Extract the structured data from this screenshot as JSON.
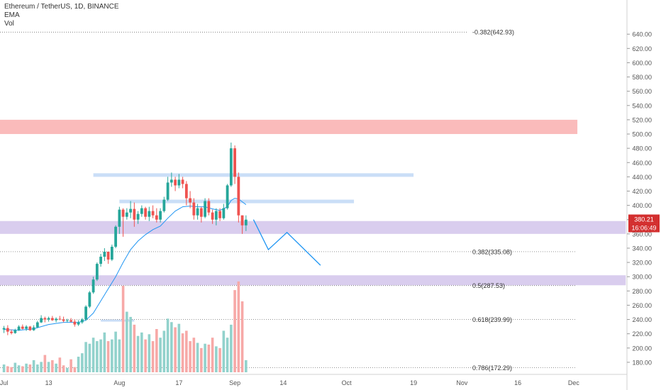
{
  "legend": {
    "symbol": "Ethereum / TetherUS, 1D, BINANCE",
    "ema": "EMA",
    "vol": "Vol"
  },
  "colors": {
    "up": "#26a69a",
    "down": "#ef5350",
    "vol_up": "#92d2cc",
    "vol_down": "#f7a9a7",
    "ema": "#2196f3",
    "projection": "#2196f3",
    "resistance_zone": "#f9b4b4",
    "support_zone": "#d5c8ec",
    "blue_zone": "#c7dcf7",
    "price_tag": "#d32f2f",
    "axis_text": "#555555",
    "grid": "#e6e6e6"
  },
  "chart_data": {
    "type": "candlestick",
    "title": "Ethereum / TetherUS, 1D, BINANCE",
    "ylim": [
      166,
      672
    ],
    "y_ticks": [
      "180.00",
      "200.00",
      "220.00",
      "240.00",
      "260.00",
      "280.00",
      "300.00",
      "320.00",
      "340.00",
      "360.00",
      "380.00",
      "400.00",
      "420.00",
      "440.00",
      "460.00",
      "480.00",
      "500.00",
      "520.00",
      "540.00",
      "560.00",
      "580.00",
      "600.00",
      "620.00",
      "640.00"
    ],
    "x_ticks": [
      {
        "label": "Jul",
        "day": 1
      },
      {
        "label": "13",
        "day": 13
      },
      {
        "label": "Aug",
        "day": 32
      },
      {
        "label": "17",
        "day": 48
      },
      {
        "label": "Sep",
        "day": 63
      },
      {
        "label": "14",
        "day": 76
      },
      {
        "label": "Oct",
        "day": 93
      },
      {
        "label": "19",
        "day": 111
      },
      {
        "label": "Nov",
        "day": 124
      },
      {
        "label": "16",
        "day": 139
      },
      {
        "label": "Dec",
        "day": 154
      }
    ],
    "current_price": "380.21",
    "countdown": "16:06:49",
    "fib_levels": [
      {
        "label": "-0.382(642.93)",
        "price": 642.93
      },
      {
        "label": "0.382(335.08)",
        "price": 335.08
      },
      {
        "label": "0.5(287.53)",
        "price": 287.53
      },
      {
        "label": "0.618(239.99)",
        "price": 239.99
      },
      {
        "label": "0.786(172.29)",
        "price": 172.29
      }
    ],
    "zones": [
      {
        "kind": "resistance",
        "from_day": -1,
        "to_day": 155,
        "low": 500,
        "high": 520
      },
      {
        "kind": "blue",
        "from_day": 25,
        "to_day": 111,
        "low": 440,
        "high": 445
      },
      {
        "kind": "blue",
        "from_day": 32,
        "to_day": 95,
        "low": 403,
        "high": 408
      },
      {
        "kind": "support",
        "from_day": -1,
        "to_day": 168,
        "low": 360,
        "high": 378
      },
      {
        "kind": "support",
        "from_day": -1,
        "to_day": 168,
        "low": 288,
        "high": 302
      },
      {
        "kind": "blue",
        "from_day": 27,
        "to_day": 36,
        "low": 237,
        "high": 240
      }
    ],
    "projection": [
      {
        "day": 68,
        "price": 380
      },
      {
        "day": 72,
        "price": 338
      },
      {
        "day": 77,
        "price": 362
      },
      {
        "day": 86,
        "price": 316
      }
    ],
    "candles": [
      {
        "day": 1,
        "o": 226,
        "h": 231,
        "l": 221,
        "c": 228,
        "v": 9
      },
      {
        "day": 2,
        "o": 228,
        "h": 232,
        "l": 218,
        "c": 223,
        "v": 7
      },
      {
        "day": 3,
        "o": 223,
        "h": 226,
        "l": 219,
        "c": 221,
        "v": 6
      },
      {
        "day": 4,
        "o": 221,
        "h": 227,
        "l": 220,
        "c": 225,
        "v": 11
      },
      {
        "day": 5,
        "o": 225,
        "h": 232,
        "l": 224,
        "c": 230,
        "v": 8
      },
      {
        "day": 6,
        "o": 230,
        "h": 233,
        "l": 226,
        "c": 227,
        "v": 7
      },
      {
        "day": 7,
        "o": 227,
        "h": 232,
        "l": 224,
        "c": 230,
        "v": 10
      },
      {
        "day": 8,
        "o": 230,
        "h": 231,
        "l": 224,
        "c": 225,
        "v": 9
      },
      {
        "day": 9,
        "o": 225,
        "h": 232,
        "l": 224,
        "c": 229,
        "v": 14
      },
      {
        "day": 10,
        "o": 229,
        "h": 238,
        "l": 228,
        "c": 236,
        "v": 9
      },
      {
        "day": 11,
        "o": 236,
        "h": 246,
        "l": 235,
        "c": 242,
        "v": 12
      },
      {
        "day": 12,
        "o": 242,
        "h": 244,
        "l": 236,
        "c": 240,
        "v": 20
      },
      {
        "day": 13,
        "o": 240,
        "h": 244,
        "l": 237,
        "c": 242,
        "v": 12
      },
      {
        "day": 14,
        "o": 242,
        "h": 245,
        "l": 238,
        "c": 239,
        "v": 14
      },
      {
        "day": 15,
        "o": 239,
        "h": 243,
        "l": 236,
        "c": 241,
        "v": 10
      },
      {
        "day": 16,
        "o": 241,
        "h": 245,
        "l": 239,
        "c": 240,
        "v": 17
      },
      {
        "day": 17,
        "o": 240,
        "h": 244,
        "l": 236,
        "c": 238,
        "v": 8
      },
      {
        "day": 18,
        "o": 238,
        "h": 241,
        "l": 236,
        "c": 239,
        "v": 5
      },
      {
        "day": 19,
        "o": 239,
        "h": 242,
        "l": 236,
        "c": 237,
        "v": 15
      },
      {
        "day": 20,
        "o": 237,
        "h": 240,
        "l": 230,
        "c": 233,
        "v": 6
      },
      {
        "day": 21,
        "o": 233,
        "h": 239,
        "l": 231,
        "c": 236,
        "v": 18
      },
      {
        "day": 22,
        "o": 236,
        "h": 242,
        "l": 234,
        "c": 240,
        "v": 22
      },
      {
        "day": 23,
        "o": 240,
        "h": 260,
        "l": 238,
        "c": 258,
        "v": 35
      },
      {
        "day": 24,
        "o": 258,
        "h": 280,
        "l": 256,
        "c": 278,
        "v": 33
      },
      {
        "day": 25,
        "o": 278,
        "h": 300,
        "l": 276,
        "c": 296,
        "v": 40
      },
      {
        "day": 26,
        "o": 296,
        "h": 320,
        "l": 294,
        "c": 318,
        "v": 36
      },
      {
        "day": 27,
        "o": 318,
        "h": 332,
        "l": 314,
        "c": 328,
        "v": 38
      },
      {
        "day": 28,
        "o": 328,
        "h": 340,
        "l": 322,
        "c": 335,
        "v": 46
      },
      {
        "day": 29,
        "o": 335,
        "h": 333,
        "l": 318,
        "c": 324,
        "v": 36
      },
      {
        "day": 30,
        "o": 324,
        "h": 345,
        "l": 322,
        "c": 342,
        "v": 38
      },
      {
        "day": 31,
        "o": 342,
        "h": 372,
        "l": 340,
        "c": 370,
        "v": 47
      },
      {
        "day": 32,
        "o": 370,
        "h": 398,
        "l": 360,
        "c": 394,
        "v": 38
      },
      {
        "day": 33,
        "o": 394,
        "h": 396,
        "l": 356,
        "c": 384,
        "v": 100
      },
      {
        "day": 34,
        "o": 384,
        "h": 396,
        "l": 380,
        "c": 390,
        "v": 70
      },
      {
        "day": 35,
        "o": 390,
        "h": 406,
        "l": 382,
        "c": 395,
        "v": 64
      },
      {
        "day": 36,
        "o": 395,
        "h": 404,
        "l": 370,
        "c": 380,
        "v": 55
      },
      {
        "day": 37,
        "o": 380,
        "h": 392,
        "l": 374,
        "c": 388,
        "v": 42
      },
      {
        "day": 38,
        "o": 388,
        "h": 400,
        "l": 384,
        "c": 396,
        "v": 46
      },
      {
        "day": 39,
        "o": 396,
        "h": 398,
        "l": 380,
        "c": 384,
        "v": 38
      },
      {
        "day": 40,
        "o": 384,
        "h": 398,
        "l": 378,
        "c": 392,
        "v": 44
      },
      {
        "day": 41,
        "o": 392,
        "h": 400,
        "l": 382,
        "c": 386,
        "v": 36
      },
      {
        "day": 42,
        "o": 386,
        "h": 396,
        "l": 376,
        "c": 380,
        "v": 50
      },
      {
        "day": 43,
        "o": 380,
        "h": 396,
        "l": 376,
        "c": 392,
        "v": 40
      },
      {
        "day": 44,
        "o": 392,
        "h": 412,
        "l": 390,
        "c": 408,
        "v": 48
      },
      {
        "day": 45,
        "o": 408,
        "h": 440,
        "l": 406,
        "c": 432,
        "v": 62
      },
      {
        "day": 46,
        "o": 432,
        "h": 446,
        "l": 426,
        "c": 436,
        "v": 58
      },
      {
        "day": 47,
        "o": 436,
        "h": 440,
        "l": 420,
        "c": 428,
        "v": 52
      },
      {
        "day": 48,
        "o": 428,
        "h": 444,
        "l": 424,
        "c": 436,
        "v": 56
      },
      {
        "day": 49,
        "o": 436,
        "h": 440,
        "l": 424,
        "c": 430,
        "v": 45
      },
      {
        "day": 50,
        "o": 430,
        "h": 434,
        "l": 400,
        "c": 410,
        "v": 48
      },
      {
        "day": 51,
        "o": 410,
        "h": 420,
        "l": 396,
        "c": 404,
        "v": 36
      },
      {
        "day": 52,
        "o": 404,
        "h": 410,
        "l": 380,
        "c": 386,
        "v": 40
      },
      {
        "day": 53,
        "o": 386,
        "h": 402,
        "l": 380,
        "c": 396,
        "v": 34
      },
      {
        "day": 54,
        "o": 396,
        "h": 398,
        "l": 376,
        "c": 384,
        "v": 28
      },
      {
        "day": 55,
        "o": 384,
        "h": 410,
        "l": 382,
        "c": 406,
        "v": 33
      },
      {
        "day": 56,
        "o": 406,
        "h": 410,
        "l": 386,
        "c": 390,
        "v": 32
      },
      {
        "day": 57,
        "o": 390,
        "h": 394,
        "l": 374,
        "c": 380,
        "v": 40
      },
      {
        "day": 58,
        "o": 380,
        "h": 396,
        "l": 372,
        "c": 392,
        "v": 30
      },
      {
        "day": 59,
        "o": 392,
        "h": 396,
        "l": 378,
        "c": 382,
        "v": 28
      },
      {
        "day": 60,
        "o": 382,
        "h": 402,
        "l": 380,
        "c": 396,
        "v": 48
      },
      {
        "day": 61,
        "o": 396,
        "h": 430,
        "l": 394,
        "c": 428,
        "v": 40
      },
      {
        "day": 62,
        "o": 428,
        "h": 488,
        "l": 426,
        "c": 480,
        "v": 55
      },
      {
        "day": 63,
        "o": 480,
        "h": 484,
        "l": 430,
        "c": 440,
        "v": 95
      },
      {
        "day": 64,
        "o": 440,
        "h": 446,
        "l": 376,
        "c": 386,
        "v": 105
      },
      {
        "day": 65,
        "o": 386,
        "h": 386,
        "l": 360,
        "c": 372,
        "v": 82
      },
      {
        "day": 66,
        "o": 372,
        "h": 386,
        "l": 364,
        "c": 380,
        "v": 14
      }
    ],
    "ema": [
      {
        "day": 1,
        "v": 226
      },
      {
        "day": 5,
        "v": 225
      },
      {
        "day": 9,
        "v": 227
      },
      {
        "day": 13,
        "v": 233
      },
      {
        "day": 17,
        "v": 236
      },
      {
        "day": 21,
        "v": 236
      },
      {
        "day": 23,
        "v": 239
      },
      {
        "day": 25,
        "v": 249
      },
      {
        "day": 27,
        "v": 266
      },
      {
        "day": 29,
        "v": 283
      },
      {
        "day": 31,
        "v": 300
      },
      {
        "day": 33,
        "v": 320
      },
      {
        "day": 35,
        "v": 338
      },
      {
        "day": 37,
        "v": 350
      },
      {
        "day": 39,
        "v": 359
      },
      {
        "day": 41,
        "v": 366
      },
      {
        "day": 43,
        "v": 371
      },
      {
        "day": 45,
        "v": 382
      },
      {
        "day": 47,
        "v": 392
      },
      {
        "day": 49,
        "v": 398
      },
      {
        "day": 51,
        "v": 399
      },
      {
        "day": 53,
        "v": 398
      },
      {
        "day": 55,
        "v": 398
      },
      {
        "day": 57,
        "v": 395
      },
      {
        "day": 59,
        "v": 393
      },
      {
        "day": 61,
        "v": 398
      },
      {
        "day": 62,
        "v": 407
      },
      {
        "day": 63,
        "v": 410
      },
      {
        "day": 64,
        "v": 409
      },
      {
        "day": 65,
        "v": 405
      },
      {
        "day": 66,
        "v": 401
      }
    ]
  }
}
